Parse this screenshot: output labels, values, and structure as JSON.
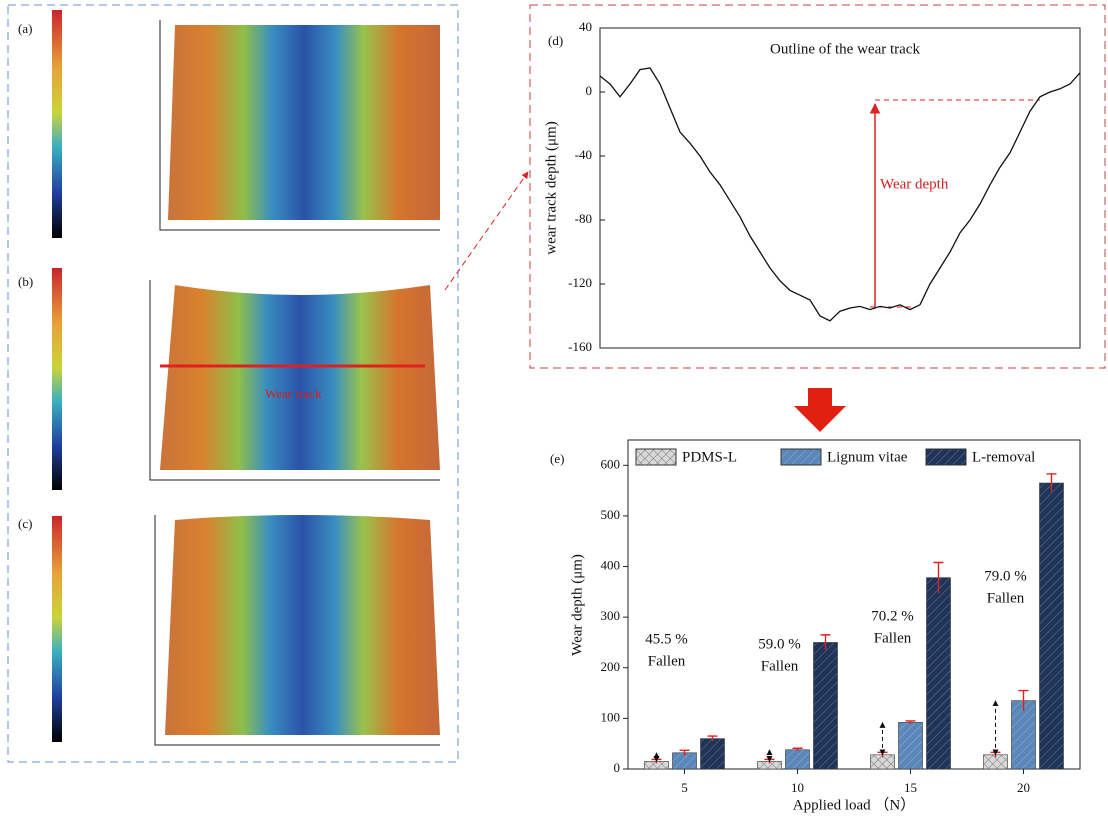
{
  "image_panels": [
    {
      "label": "(a)"
    },
    {
      "label": "(b)",
      "annotation": "Wear track"
    },
    {
      "label": "(c)"
    }
  ],
  "chart_data": [
    {
      "type": "line",
      "panel": "(d)",
      "annotation": "Outline of the wear track",
      "ylabel": "wear track depth (μm)",
      "arrow_label": "Wear depth",
      "color": "#111111",
      "values": [
        10,
        5,
        -3,
        5,
        14,
        15,
        5,
        -10,
        -25,
        -32,
        -40,
        -50,
        -58,
        -68,
        -78,
        -90,
        -100,
        -110,
        -118,
        -124,
        -127,
        -130,
        -140,
        -143,
        -137,
        -135,
        -134,
        -136,
        -134,
        -135,
        -133,
        -136,
        -133,
        -120,
        -110,
        -100,
        -88,
        -80,
        -70,
        -58,
        -47,
        -38,
        -25,
        -12,
        -3,
        0,
        2,
        5,
        12
      ],
      "ylim": [
        -160,
        40
      ],
      "yticks": [
        40,
        0,
        -40,
        -80,
        -120,
        -160
      ]
    },
    {
      "type": "bar",
      "panel": "(e)",
      "xlabel": "Applied load （N）",
      "ylabel": "Wear depth (μm)",
      "categories": [
        "5",
        "10",
        "15",
        "20"
      ],
      "series": [
        {
          "name": "PDMS-L",
          "color": "#d8d8d8",
          "values": [
            15,
            15,
            28,
            28
          ],
          "errors": [
            4,
            4,
            5,
            5
          ]
        },
        {
          "name": "Lignum vitae",
          "color": "#5b87b8",
          "values": [
            32,
            38,
            92,
            135
          ],
          "errors": [
            5,
            3,
            3,
            20
          ]
        },
        {
          "name": "L-removal",
          "color": "#1f3458",
          "values": [
            60,
            250,
            378,
            565
          ],
          "errors": [
            5,
            15,
            30,
            18
          ]
        }
      ],
      "annotations": [
        "45.5 %",
        "59.0 %",
        "70.2 %",
        "79.0 %"
      ],
      "annotation_note": "Fallen",
      "ylim": [
        0,
        650
      ],
      "yticks": [
        0,
        100,
        200,
        300,
        400,
        500,
        600
      ],
      "legend": "top"
    }
  ]
}
